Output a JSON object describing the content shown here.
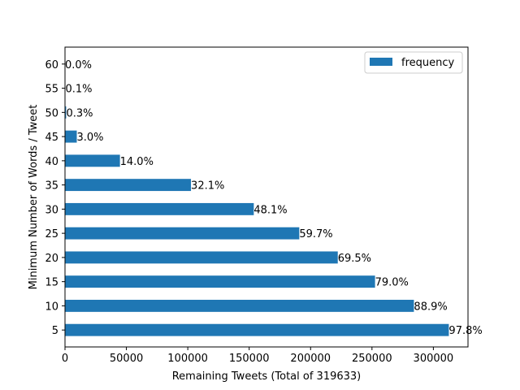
{
  "chart_data": {
    "type": "bar",
    "orientation": "horizontal",
    "categories": [
      "5",
      "10",
      "15",
      "20",
      "25",
      "30",
      "35",
      "40",
      "45",
      "50",
      "55",
      "60"
    ],
    "series": [
      {
        "name": "frequency",
        "values": [
          312600,
          284150,
          252500,
          222150,
          190800,
          153750,
          102600,
          44750,
          9600,
          960,
          320,
          0
        ],
        "data_labels": [
          "97.8%",
          "88.9%",
          "79.0%",
          "69.5%",
          "59.7%",
          "48.1%",
          "32.1%",
          "14.0%",
          "3.0%",
          "0.3%",
          "0.1%",
          "0.0%"
        ]
      }
    ],
    "xlabel": "Remaining Tweets (Total of 319633)",
    "ylabel": "Minimum Number of Words / Tweet",
    "xlim": [
      0,
      328200
    ],
    "xticks": [
      0,
      50000,
      100000,
      150000,
      200000,
      250000,
      300000
    ],
    "xtick_labels": [
      "0",
      "50000",
      "100000",
      "150000",
      "200000",
      "250000",
      "300000"
    ],
    "grid": false,
    "legend_position": "top-right",
    "colors": {
      "bar": "#1f77b4"
    }
  }
}
